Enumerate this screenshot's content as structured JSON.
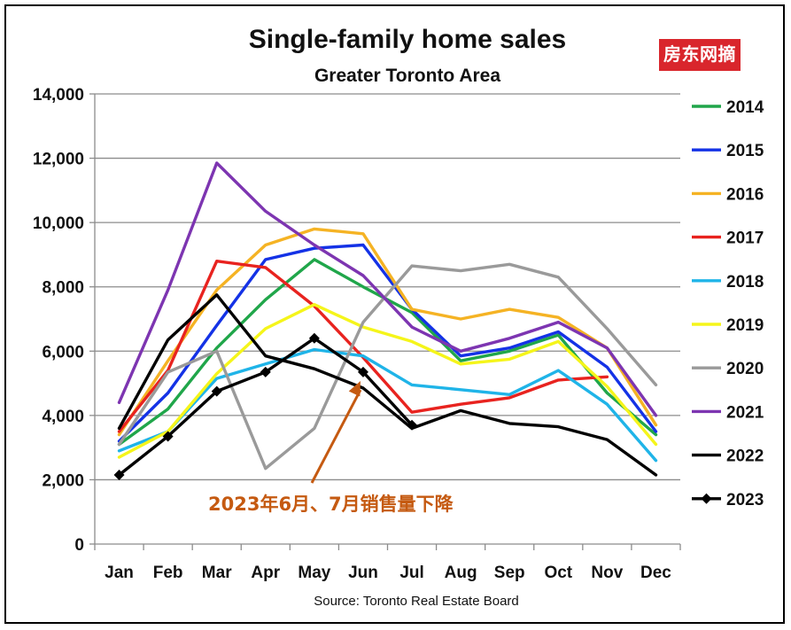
{
  "title": "Single-family home sales",
  "subtitle": "Greater Toronto Area",
  "source": "Source: Toronto Real Estate Board",
  "watermark": "房东网摘",
  "annotation": {
    "text": "2023年6月、7月销售量下降",
    "color": "#c55a11",
    "target": {
      "x": "Jun",
      "y": 5400
    }
  },
  "chart_data": {
    "type": "line",
    "title": "Single-family home sales",
    "subtitle": "Greater Toronto Area",
    "xlabel": "",
    "ylabel": "",
    "ylim": [
      0,
      14000
    ],
    "yticks": [
      0,
      2000,
      4000,
      6000,
      8000,
      10000,
      12000,
      14000
    ],
    "ytick_labels": [
      "0",
      "2,000",
      "4,000",
      "6,000",
      "8,000",
      "10,000",
      "12,000",
      "14,000"
    ],
    "categories": [
      "Jan",
      "Feb",
      "Mar",
      "Apr",
      "May",
      "Jun",
      "Jul",
      "Aug",
      "Sep",
      "Oct",
      "Nov",
      "Dec"
    ],
    "grid": "horizontal",
    "legend": "right",
    "series": [
      {
        "name": "2014",
        "color": "#20a64a",
        "values": [
          3100,
          4200,
          6100,
          7600,
          8850,
          8000,
          7200,
          5700,
          6000,
          6500,
          4700,
          3400
        ]
      },
      {
        "name": "2015",
        "color": "#1432e6",
        "values": [
          3200,
          4700,
          6800,
          8850,
          9200,
          9300,
          7300,
          5850,
          6100,
          6600,
          5500,
          3500
        ]
      },
      {
        "name": "2016",
        "color": "#f5b324",
        "values": [
          3400,
          5700,
          7900,
          9300,
          9800,
          9650,
          7300,
          7000,
          7300,
          7050,
          6100,
          3700
        ]
      },
      {
        "name": "2017",
        "color": "#e8231f",
        "values": [
          3500,
          5400,
          8800,
          8600,
          7400,
          5800,
          4100,
          4350,
          4550,
          5100,
          5200,
          null
        ]
      },
      {
        "name": "2018",
        "color": "#1fb4e8",
        "values": [
          2900,
          3500,
          5150,
          5600,
          6050,
          5850,
          4950,
          4800,
          4650,
          5400,
          4350,
          2600
        ]
      },
      {
        "name": "2019",
        "color": "#f5f51a",
        "values": [
          2700,
          3500,
          5300,
          6700,
          7450,
          6750,
          6300,
          5600,
          5750,
          6300,
          4900,
          3100
        ]
      },
      {
        "name": "2020",
        "color": "#9a9a9a",
        "values": [
          3100,
          5350,
          6000,
          2350,
          3600,
          6900,
          8650,
          8500,
          8700,
          8300,
          6700,
          4950
        ]
      },
      {
        "name": "2021",
        "color": "#7d35b1",
        "values": [
          4400,
          7900,
          11850,
          10350,
          9300,
          8350,
          6750,
          6000,
          6400,
          6900,
          6100,
          4000
        ]
      },
      {
        "name": "2022",
        "color": "#000000",
        "values": [
          3600,
          6350,
          7750,
          5850,
          5450,
          4850,
          3600,
          4150,
          3750,
          3650,
          3250,
          2150
        ]
      },
      {
        "name": "2023",
        "color": "#000000",
        "marker": "diamond",
        "values": [
          2150,
          3350,
          4750,
          5350,
          6400,
          5350,
          3700,
          null,
          null,
          null,
          null,
          null
        ]
      }
    ]
  }
}
